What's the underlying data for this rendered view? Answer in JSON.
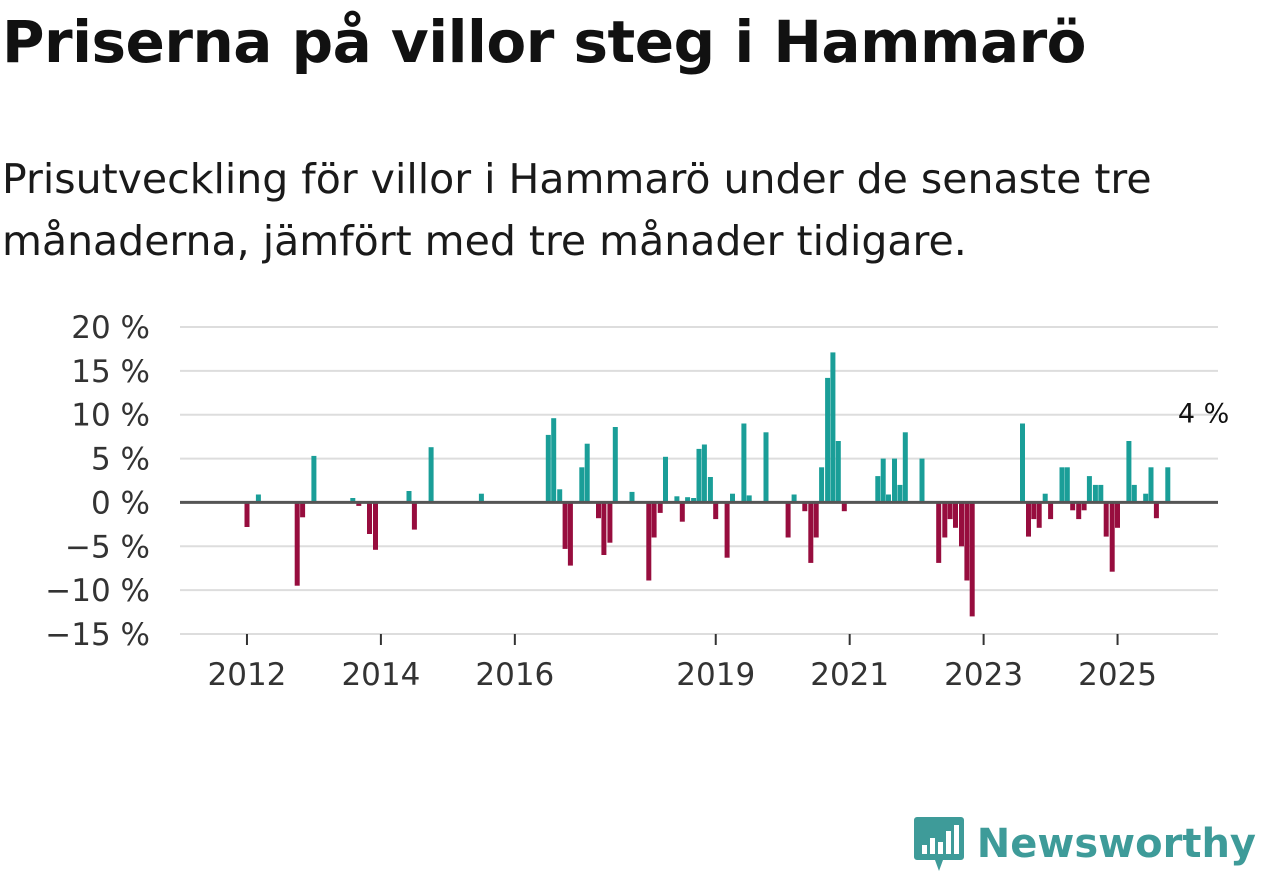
{
  "title": "Priserna på villor steg i Hammarö",
  "subtitle": "Prisutveckling för villor i Hammarö under de senaste tre månaderna, jämfört med tre månader tidigare.",
  "brand": {
    "name": "Newsworthy",
    "color": "#3e9b99",
    "icon": "bar-chart-speech-bubble-icon"
  },
  "chart_data": {
    "type": "bar",
    "title": "Priserna på villor steg i Hammarö",
    "xlabel": "",
    "ylabel": "",
    "x_range": [
      2011.0,
      2026.5
    ],
    "ylim": [
      -15,
      20
    ],
    "y_ticks": [
      20,
      15,
      10,
      5,
      0,
      -5,
      -10,
      -15
    ],
    "y_tick_labels": [
      "20 %",
      "15 %",
      "10 %",
      "5 %",
      "0 %",
      "−5 %",
      "−10 %",
      "−15 %"
    ],
    "x_ticks": [
      2012,
      2014,
      2016,
      2019,
      2021,
      2023,
      2025
    ],
    "x_tick_labels": [
      "2012",
      "2014",
      "2016",
      "2019",
      "2021",
      "2023",
      "2025"
    ],
    "colors": {
      "positive": "#1a9e98",
      "negative": "#970d3e",
      "grid": "#dddddd",
      "zero": "#555555"
    },
    "annotation": {
      "text": "4 %",
      "x": 2026.25,
      "y": 4
    },
    "bars": [
      {
        "x": 2012.0,
        "y": -2.8
      },
      {
        "x": 2012.17,
        "y": 0.9
      },
      {
        "x": 2012.75,
        "y": -9.5
      },
      {
        "x": 2012.83,
        "y": -1.7
      },
      {
        "x": 2013.0,
        "y": 5.3
      },
      {
        "x": 2013.58,
        "y": 0.5
      },
      {
        "x": 2013.67,
        "y": -0.4
      },
      {
        "x": 2013.83,
        "y": -3.6
      },
      {
        "x": 2013.92,
        "y": -5.4
      },
      {
        "x": 2014.42,
        "y": 1.3
      },
      {
        "x": 2014.5,
        "y": -3.1
      },
      {
        "x": 2014.75,
        "y": 6.3
      },
      {
        "x": 2015.5,
        "y": 1.0
      },
      {
        "x": 2016.5,
        "y": 7.7
      },
      {
        "x": 2016.58,
        "y": 9.6
      },
      {
        "x": 2016.67,
        "y": 1.5
      },
      {
        "x": 2016.75,
        "y": -5.3
      },
      {
        "x": 2016.83,
        "y": -7.2
      },
      {
        "x": 2017.0,
        "y": 4.0
      },
      {
        "x": 2017.08,
        "y": 6.7
      },
      {
        "x": 2017.25,
        "y": -1.8
      },
      {
        "x": 2017.33,
        "y": -6.0
      },
      {
        "x": 2017.42,
        "y": -4.6
      },
      {
        "x": 2017.5,
        "y": 8.6
      },
      {
        "x": 2017.75,
        "y": 1.2
      },
      {
        "x": 2018.0,
        "y": -8.9
      },
      {
        "x": 2018.08,
        "y": -4.0
      },
      {
        "x": 2018.17,
        "y": -1.2
      },
      {
        "x": 2018.25,
        "y": 5.2
      },
      {
        "x": 2018.42,
        "y": 0.7
      },
      {
        "x": 2018.5,
        "y": -2.2
      },
      {
        "x": 2018.58,
        "y": 0.6
      },
      {
        "x": 2018.67,
        "y": 0.5
      },
      {
        "x": 2018.75,
        "y": 6.1
      },
      {
        "x": 2018.83,
        "y": 6.6
      },
      {
        "x": 2018.92,
        "y": 2.9
      },
      {
        "x": 2019.0,
        "y": -1.9
      },
      {
        "x": 2019.17,
        "y": -6.3
      },
      {
        "x": 2019.25,
        "y": 1.0
      },
      {
        "x": 2019.42,
        "y": 9.0
      },
      {
        "x": 2019.5,
        "y": 0.8
      },
      {
        "x": 2019.75,
        "y": 8.0
      },
      {
        "x": 2020.08,
        "y": -4.0
      },
      {
        "x": 2020.17,
        "y": 0.9
      },
      {
        "x": 2020.33,
        "y": -1.0
      },
      {
        "x": 2020.42,
        "y": -6.9
      },
      {
        "x": 2020.5,
        "y": -4.0
      },
      {
        "x": 2020.58,
        "y": 4.0
      },
      {
        "x": 2020.67,
        "y": 14.2
      },
      {
        "x": 2020.75,
        "y": 17.1
      },
      {
        "x": 2020.83,
        "y": 7.0
      },
      {
        "x": 2020.92,
        "y": -1.0
      },
      {
        "x": 2021.42,
        "y": 3.0
      },
      {
        "x": 2021.5,
        "y": 5.0
      },
      {
        "x": 2021.58,
        "y": 0.9
      },
      {
        "x": 2021.67,
        "y": 5.0
      },
      {
        "x": 2021.75,
        "y": 2.0
      },
      {
        "x": 2021.83,
        "y": 8.0
      },
      {
        "x": 2022.08,
        "y": 5.0
      },
      {
        "x": 2022.33,
        "y": -6.9
      },
      {
        "x": 2022.42,
        "y": -4.0
      },
      {
        "x": 2022.5,
        "y": -1.9
      },
      {
        "x": 2022.58,
        "y": -2.9
      },
      {
        "x": 2022.67,
        "y": -5.0
      },
      {
        "x": 2022.75,
        "y": -8.9
      },
      {
        "x": 2022.83,
        "y": -13.0
      },
      {
        "x": 2023.58,
        "y": 9.0
      },
      {
        "x": 2023.67,
        "y": -3.9
      },
      {
        "x": 2023.75,
        "y": -1.9
      },
      {
        "x": 2023.83,
        "y": -2.9
      },
      {
        "x": 2023.92,
        "y": 1.0
      },
      {
        "x": 2024.0,
        "y": -1.9
      },
      {
        "x": 2024.17,
        "y": 4.0
      },
      {
        "x": 2024.25,
        "y": 4.0
      },
      {
        "x": 2024.33,
        "y": -0.9
      },
      {
        "x": 2024.42,
        "y": -1.9
      },
      {
        "x": 2024.5,
        "y": -0.9
      },
      {
        "x": 2024.58,
        "y": 3.0
      },
      {
        "x": 2024.67,
        "y": 2.0
      },
      {
        "x": 2024.75,
        "y": 2.0
      },
      {
        "x": 2024.83,
        "y": -3.9
      },
      {
        "x": 2024.92,
        "y": -7.9
      },
      {
        "x": 2025.0,
        "y": -2.9
      },
      {
        "x": 2025.17,
        "y": 7.0
      },
      {
        "x": 2025.25,
        "y": 2.0
      },
      {
        "x": 2025.42,
        "y": 1.0
      },
      {
        "x": 2025.5,
        "y": 4.0
      },
      {
        "x": 2025.58,
        "y": -1.8
      },
      {
        "x": 2025.75,
        "y": 4.0
      }
    ]
  }
}
